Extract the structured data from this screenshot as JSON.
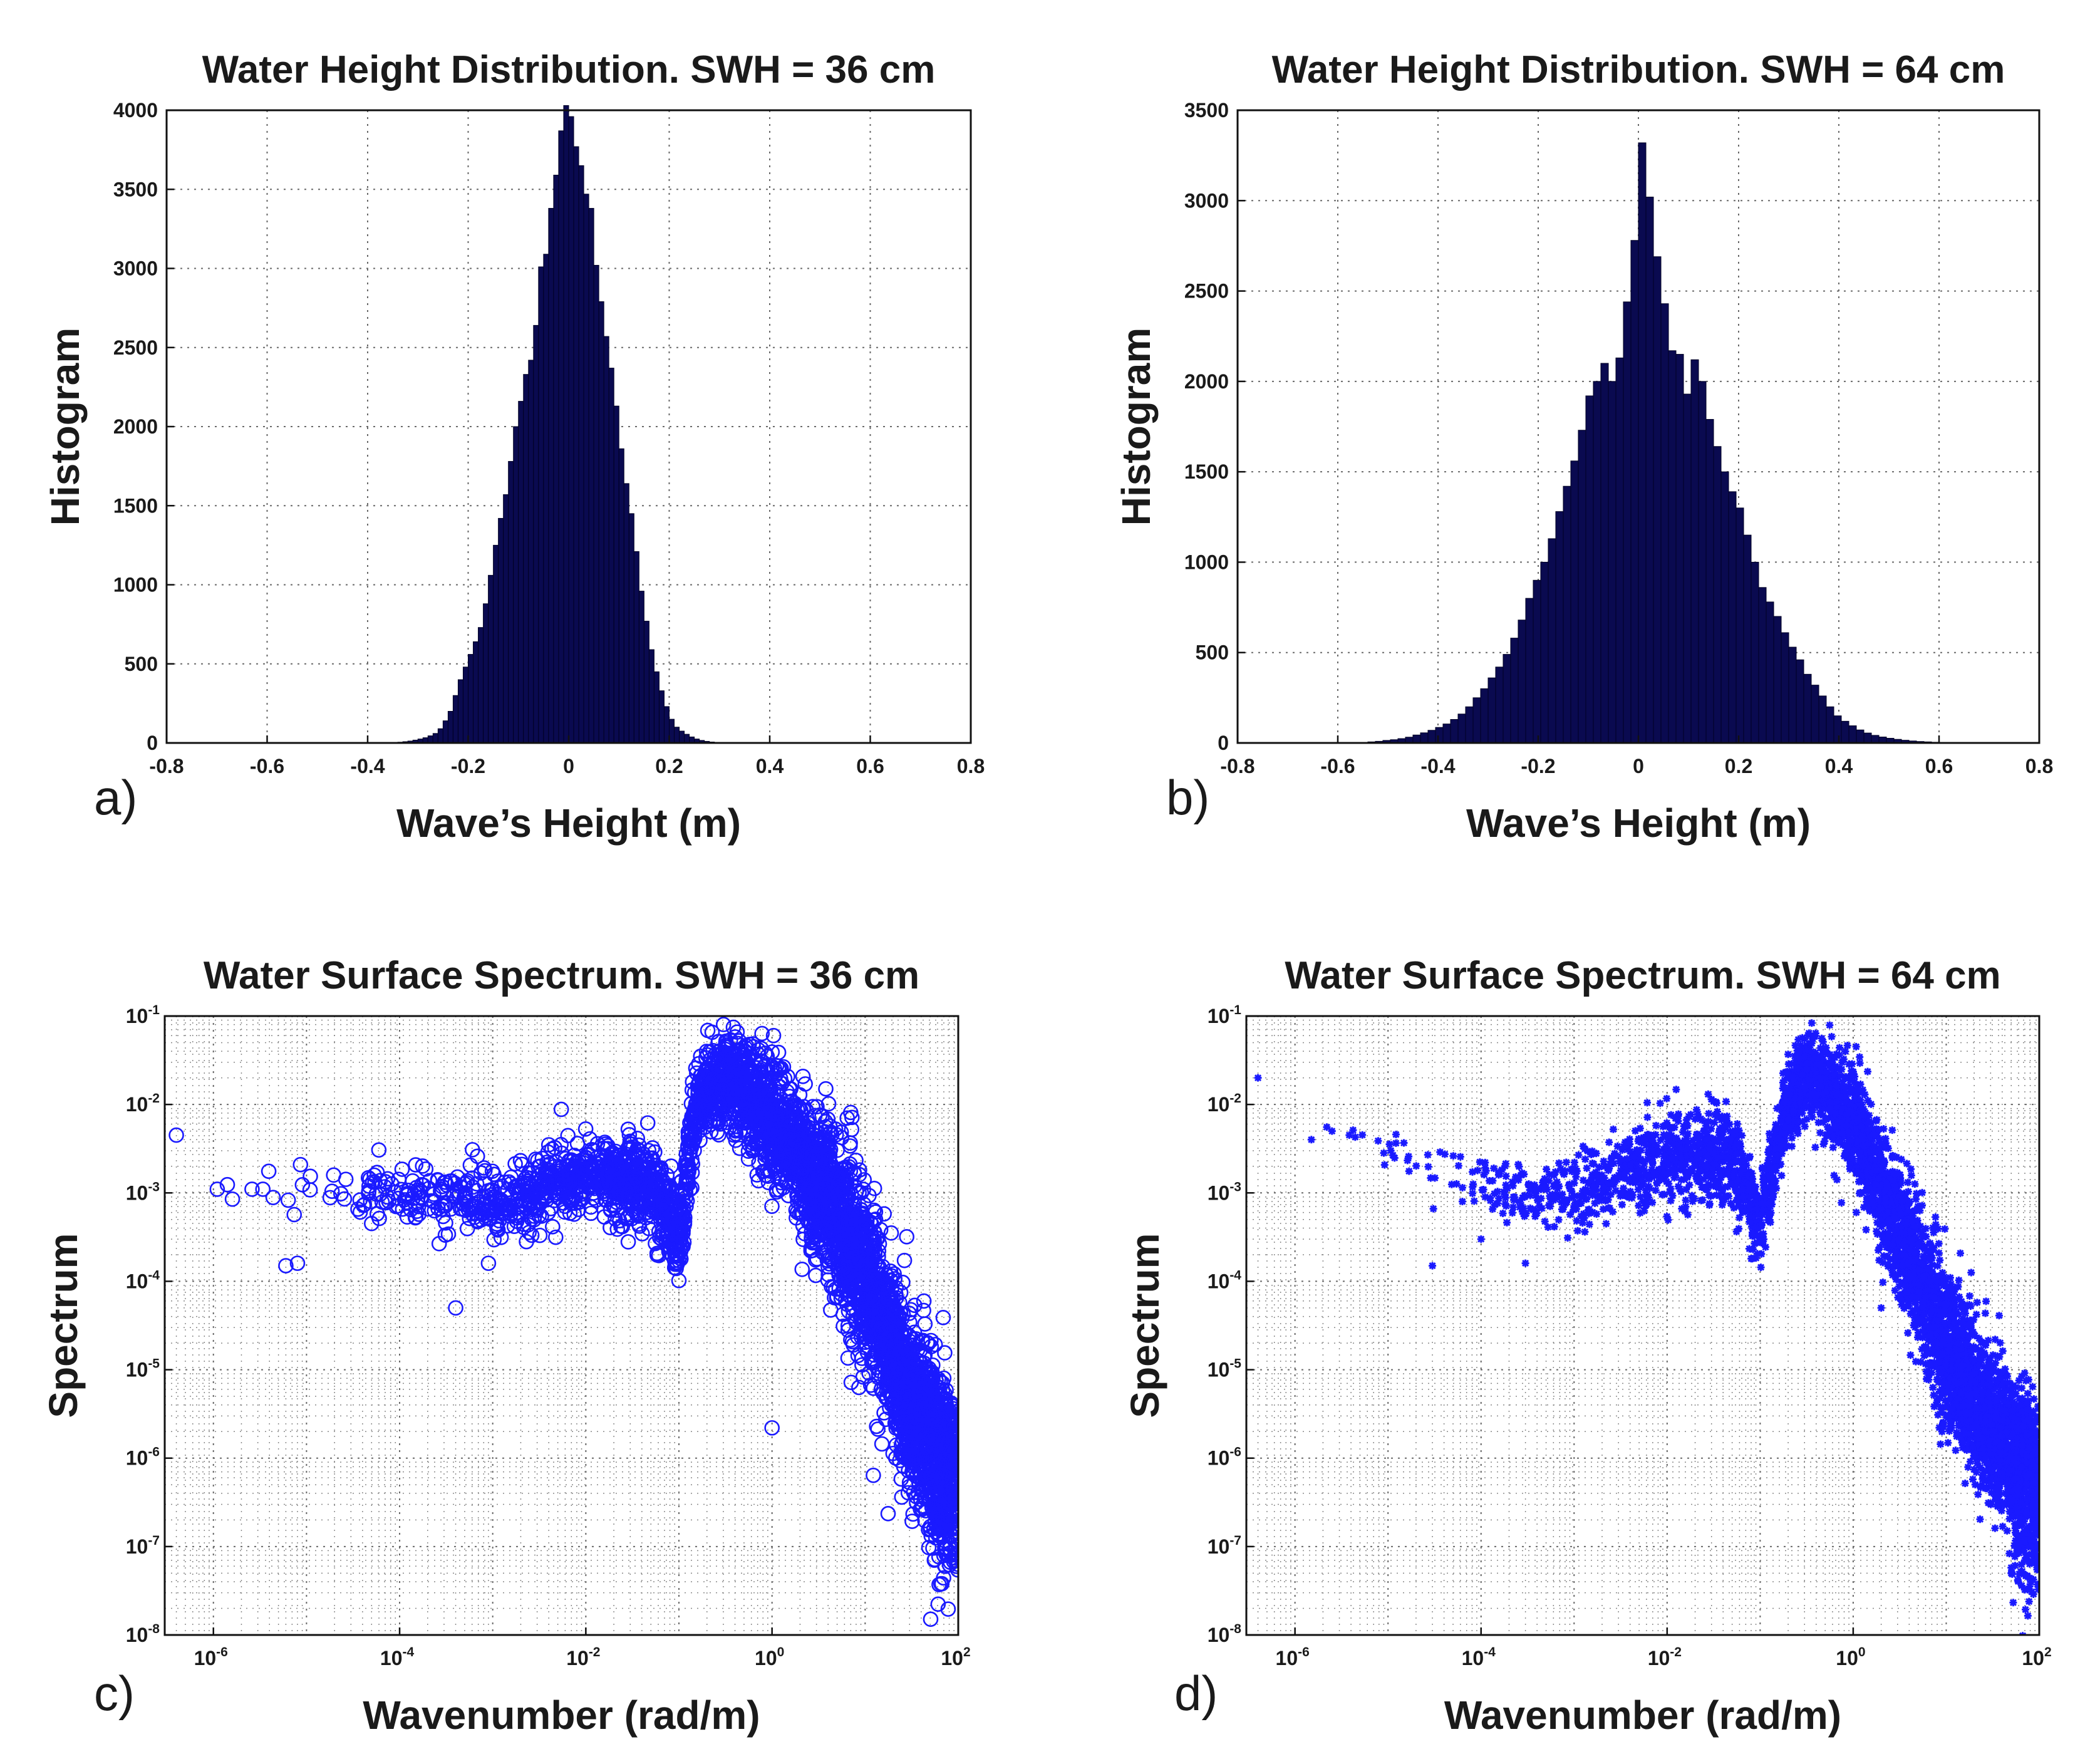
{
  "figure": {
    "panel_labels": [
      "a)",
      "b)",
      "c)",
      "d)"
    ],
    "colors": {
      "histogram_fill": "#0a0a50",
      "histogram_edge": "#000022",
      "scatter": "#1a1aff"
    }
  },
  "chart_data": [
    {
      "type": "bar",
      "panel": "a)",
      "title": "Water Height Distribution. SWH = 36 cm",
      "xlabel": "Wave’s Height (m)",
      "ylabel": "Histogram",
      "xlim": [
        -0.8,
        0.8
      ],
      "ylim": [
        0,
        4000
      ],
      "xticks": [
        -0.8,
        -0.6,
        -0.4,
        -0.2,
        0,
        0.2,
        0.4,
        0.6,
        0.8
      ],
      "xtick_labels": [
        "-0.8",
        "-0.6",
        "-0.4",
        "-0.2",
        "0",
        "0.2",
        "0.4",
        "0.6",
        "0.8"
      ],
      "yticks": [
        0,
        500,
        1000,
        1500,
        2000,
        2500,
        3000,
        3500,
        4000
      ],
      "ytick_labels": [
        "0",
        "500",
        "1000",
        "1500",
        "2000",
        "2500",
        "3000",
        "3500",
        "4000"
      ],
      "grid": true,
      "bin_width": 0.01,
      "bin_centers": [
        -0.335,
        -0.325,
        -0.315,
        -0.305,
        -0.295,
        -0.285,
        -0.275,
        -0.265,
        -0.255,
        -0.245,
        -0.235,
        -0.225,
        -0.215,
        -0.205,
        -0.195,
        -0.185,
        -0.175,
        -0.165,
        -0.155,
        -0.145,
        -0.135,
        -0.125,
        -0.115,
        -0.105,
        -0.095,
        -0.085,
        -0.075,
        -0.065,
        -0.055,
        -0.045,
        -0.035,
        -0.025,
        -0.015,
        -0.005,
        0.005,
        0.015,
        0.025,
        0.035,
        0.045,
        0.055,
        0.065,
        0.075,
        0.085,
        0.095,
        0.105,
        0.115,
        0.125,
        0.135,
        0.145,
        0.155,
        0.165,
        0.175,
        0.185,
        0.195,
        0.205,
        0.215,
        0.225,
        0.235,
        0.245,
        0.255,
        0.265,
        0.275,
        0.285,
        0.295,
        0.305
      ],
      "values": [
        5,
        8,
        12,
        18,
        25,
        33,
        45,
        60,
        90,
        140,
        200,
        300,
        400,
        480,
        560,
        640,
        730,
        880,
        1060,
        1250,
        1420,
        1570,
        1780,
        2000,
        2160,
        2330,
        2420,
        2640,
        3010,
        3090,
        3380,
        3590,
        3870,
        4030,
        3960,
        3770,
        3650,
        3470,
        3380,
        3020,
        2790,
        2570,
        2370,
        2130,
        1860,
        1640,
        1450,
        1210,
        960,
        770,
        590,
        450,
        330,
        230,
        150,
        100,
        75,
        55,
        38,
        25,
        16,
        10,
        6,
        4,
        2
      ]
    },
    {
      "type": "bar",
      "panel": "b)",
      "title": "Water Height Distribution. SWH = 64 cm",
      "xlabel": "Wave’s Height (m)",
      "ylabel": "Histogram",
      "xlim": [
        -0.8,
        0.8
      ],
      "ylim": [
        0,
        3500
      ],
      "xticks": [
        -0.8,
        -0.6,
        -0.4,
        -0.2,
        0,
        0.2,
        0.4,
        0.6,
        0.8
      ],
      "xtick_labels": [
        "-0.8",
        "-0.6",
        "-0.4",
        "-0.2",
        "0",
        "0.2",
        "0.4",
        "0.6",
        "0.8"
      ],
      "yticks": [
        0,
        500,
        1000,
        1500,
        2000,
        2500,
        3000,
        3500
      ],
      "ytick_labels": [
        "0",
        "500",
        "1000",
        "1500",
        "2000",
        "2500",
        "3000",
        "3500"
      ],
      "grid": true,
      "bin_width": 0.015,
      "bin_centers": [
        -0.5325,
        -0.5175,
        -0.5025,
        -0.4875,
        -0.4725,
        -0.4575,
        -0.4425,
        -0.4275,
        -0.4125,
        -0.3975,
        -0.3825,
        -0.3675,
        -0.3525,
        -0.3375,
        -0.3225,
        -0.3075,
        -0.2925,
        -0.2775,
        -0.2625,
        -0.2475,
        -0.2325,
        -0.2175,
        -0.2025,
        -0.1875,
        -0.1725,
        -0.1575,
        -0.1425,
        -0.1275,
        -0.1125,
        -0.0975,
        -0.0825,
        -0.0675,
        -0.0525,
        -0.0375,
        -0.0225,
        -0.0075,
        0.0075,
        0.0225,
        0.0375,
        0.0525,
        0.0675,
        0.0825,
        0.0975,
        0.1125,
        0.1275,
        0.1425,
        0.1575,
        0.1725,
        0.1875,
        0.2025,
        0.2175,
        0.2325,
        0.2475,
        0.2625,
        0.2775,
        0.2925,
        0.3075,
        0.3225,
        0.3375,
        0.3525,
        0.3675,
        0.3825,
        0.3975,
        0.4125,
        0.4275,
        0.4425,
        0.4575,
        0.4725,
        0.4875,
        0.5025,
        0.5175,
        0.5325,
        0.5475,
        0.5625,
        0.5775,
        0.5925,
        0.6075
      ],
      "values": [
        6,
        9,
        14,
        18,
        24,
        32,
        44,
        56,
        70,
        86,
        105,
        130,
        160,
        200,
        250,
        300,
        360,
        420,
        490,
        580,
        680,
        800,
        900,
        1000,
        1130,
        1280,
        1420,
        1560,
        1730,
        1920,
        2000,
        2100,
        2000,
        2130,
        2440,
        2780,
        3320,
        3020,
        2690,
        2430,
        2170,
        2150,
        1930,
        2120,
        2000,
        1790,
        1640,
        1500,
        1390,
        1300,
        1150,
        1000,
        860,
        780,
        700,
        610,
        530,
        460,
        380,
        320,
        260,
        200,
        150,
        120,
        95,
        72,
        55,
        42,
        33,
        26,
        20,
        15,
        11,
        8,
        6,
        4,
        3
      ]
    },
    {
      "type": "scatter",
      "panel": "c)",
      "title": "Water Surface Spectrum. SWH = 36 cm",
      "xlabel": "Wavenumber (rad/m)",
      "ylabel": "Spectrum",
      "xscale": "log",
      "yscale": "log",
      "xlim": [
        3e-07,
        100
      ],
      "ylim": [
        1e-08,
        0.1
      ],
      "x_tick_exponents": [
        -6,
        -4,
        -2,
        0,
        2
      ],
      "y_tick_exponents": [
        -8,
        -7,
        -6,
        -5,
        -4,
        -3,
        -2,
        -1
      ],
      "tick_base": "10",
      "grid": true,
      "marker": "circle",
      "series": [
        {
          "name": "SWH 36 cm",
          "envelope_log10k": [
            -6.5,
            -5.0,
            -4.0,
            -3.0,
            -2.0,
            -1.3,
            -1.0,
            -0.8,
            -0.5,
            0.0,
            0.5,
            1.0,
            1.5,
            2.0
          ],
          "envelope_log10S": [
            -3.0,
            -3.0,
            -3.0,
            -3.1,
            -2.8,
            -2.9,
            -3.5,
            -1.9,
            -1.7,
            -2.2,
            -2.9,
            -3.9,
            -5.5,
            -6.0
          ],
          "envelope_spread": [
            0.15,
            0.2,
            0.3,
            0.35,
            0.35,
            0.4,
            0.35,
            0.35,
            0.45,
            0.6,
            0.7,
            0.8,
            0.8,
            0.7
          ],
          "samples_x": [
            4e-07,
            1.1e-06,
            1.6e-06,
            2.6e-06,
            3.4e-06,
            6e-06,
            8e-06,
            5e-05,
            0.0004,
            0.0009,
            0.004,
            0.012,
            0.14,
            0.2,
            1.0
          ],
          "samples_y": [
            0.0045,
            0.0011,
            0.00085,
            0.0011,
            0.0011,
            0.00015,
            0.00016,
            0.00045,
            5e-05,
            0.00016,
            0.0035,
            0.0019,
            0.018,
            0.012,
            2.2e-06
          ]
        }
      ]
    },
    {
      "type": "scatter",
      "panel": "d)",
      "title": "Water Surface Spectrum. SWH = 64 cm",
      "xlabel": "Wavenumber (rad/m)",
      "ylabel": "Spectrum",
      "xscale": "log",
      "yscale": "log",
      "xlim": [
        3e-07,
        100
      ],
      "ylim": [
        1e-08,
        0.1
      ],
      "x_tick_exponents": [
        -6,
        -4,
        -2,
        0,
        2
      ],
      "y_tick_exponents": [
        -8,
        -7,
        -6,
        -5,
        -4,
        -3,
        -2,
        -1
      ],
      "tick_base": "10",
      "grid": true,
      "marker": "asterisk",
      "series": [
        {
          "name": "SWH 64 cm",
          "envelope_log10k": [
            -6.5,
            -5.0,
            -4.0,
            -3.0,
            -2.0,
            -1.3,
            -1.0,
            -0.7,
            -0.5,
            0.0,
            0.5,
            1.0,
            1.5,
            2.0
          ],
          "envelope_log10S": [
            -2.0,
            -2.5,
            -2.9,
            -3.0,
            -2.6,
            -2.6,
            -3.3,
            -2.0,
            -1.6,
            -2.2,
            -3.4,
            -4.8,
            -5.7,
            -6.2
          ],
          "envelope_spread": [
            0.15,
            0.2,
            0.3,
            0.35,
            0.4,
            0.45,
            0.4,
            0.35,
            0.4,
            0.55,
            0.6,
            0.7,
            0.7,
            0.6
          ],
          "samples_x": [
            4e-07,
            1.5e-06,
            2.5e-06,
            3e-05,
            0.0001,
            0.0003,
            0.012,
            0.3,
            0.4,
            2.0,
            50
          ],
          "samples_y": [
            0.02,
            0.004,
            0.005,
            0.00015,
            0.0003,
            0.00016,
            0.0055,
            0.035,
            0.028,
            5e-05,
            5e-08
          ]
        }
      ]
    }
  ]
}
